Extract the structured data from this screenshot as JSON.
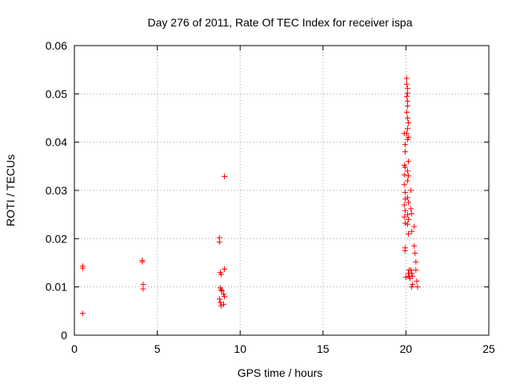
{
  "chart_data": {
    "type": "scatter",
    "title": "Day 276 of 2011, Rate Of TEC Index for receiver ispa",
    "xlabel": "GPS time / hours",
    "ylabel": "ROTI / TECUs",
    "xlim": [
      0,
      25
    ],
    "ylim": [
      0,
      0.06
    ],
    "xticks": [
      0,
      5,
      10,
      15,
      20,
      25
    ],
    "xtick_labels": [
      "0",
      "5",
      "10",
      "15",
      "20",
      "25"
    ],
    "yticks": [
      0,
      0.01,
      0.02,
      0.03,
      0.04,
      0.05,
      0.06
    ],
    "ytick_labels": [
      "0",
      "0.01",
      "0.02",
      "0.03",
      "0.04",
      "0.05",
      "0.06"
    ],
    "grid": true,
    "marker": "+",
    "series": [
      {
        "name": "ROTI",
        "color": "#ff0000",
        "points": [
          [
            0.5,
            0.0143
          ],
          [
            0.5,
            0.0139
          ],
          [
            0.5,
            0.0045
          ],
          [
            4.1,
            0.0155
          ],
          [
            4.1,
            0.0152
          ],
          [
            4.15,
            0.0105
          ],
          [
            4.15,
            0.0096
          ],
          [
            8.75,
            0.0202
          ],
          [
            8.75,
            0.0193
          ],
          [
            8.8,
            0.013
          ],
          [
            8.85,
            0.0126
          ],
          [
            8.8,
            0.0098
          ],
          [
            8.85,
            0.0094
          ],
          [
            8.9,
            0.0092
          ],
          [
            8.75,
            0.0075
          ],
          [
            8.8,
            0.0068
          ],
          [
            8.85,
            0.0061
          ],
          [
            9.0,
            0.0085
          ],
          [
            9.05,
            0.008
          ],
          [
            9.0,
            0.0064
          ],
          [
            9.05,
            0.0137
          ],
          [
            9.05,
            0.0329
          ],
          [
            19.9,
            0.0418
          ],
          [
            19.95,
            0.0395
          ],
          [
            19.95,
            0.038
          ],
          [
            19.9,
            0.0352
          ],
          [
            19.95,
            0.0348
          ],
          [
            19.9,
            0.0332
          ],
          [
            19.9,
            0.0312
          ],
          [
            19.95,
            0.0296
          ],
          [
            19.95,
            0.0282
          ],
          [
            19.9,
            0.027
          ],
          [
            19.95,
            0.0258
          ],
          [
            19.9,
            0.0245
          ],
          [
            19.95,
            0.0232
          ],
          [
            19.95,
            0.0181
          ],
          [
            19.95,
            0.0175
          ],
          [
            20.0,
            0.012
          ],
          [
            20.05,
            0.0532
          ],
          [
            20.05,
            0.052
          ],
          [
            20.1,
            0.0511
          ],
          [
            20.1,
            0.0502
          ],
          [
            20.05,
            0.0495
          ],
          [
            20.1,
            0.0485
          ],
          [
            20.1,
            0.0475
          ],
          [
            20.05,
            0.0462
          ],
          [
            20.1,
            0.045
          ],
          [
            20.15,
            0.044
          ],
          [
            20.1,
            0.0428
          ],
          [
            20.05,
            0.0418
          ],
          [
            20.15,
            0.041
          ],
          [
            20.1,
            0.0405
          ],
          [
            20.15,
            0.036
          ],
          [
            20.1,
            0.034
          ],
          [
            20.15,
            0.033
          ],
          [
            20.1,
            0.032
          ],
          [
            20.1,
            0.0285
          ],
          [
            20.15,
            0.0275
          ],
          [
            20.1,
            0.025
          ],
          [
            20.15,
            0.024
          ],
          [
            20.1,
            0.023
          ],
          [
            20.15,
            0.021
          ],
          [
            20.2,
            0.0135
          ],
          [
            20.15,
            0.0128
          ],
          [
            20.2,
            0.0122
          ],
          [
            20.25,
            0.0118
          ],
          [
            20.3,
            0.03
          ],
          [
            20.3,
            0.0262
          ],
          [
            20.35,
            0.0252
          ],
          [
            20.35,
            0.0215
          ],
          [
            20.3,
            0.0135
          ],
          [
            20.35,
            0.0128
          ],
          [
            20.4,
            0.0122
          ],
          [
            20.4,
            0.0105
          ],
          [
            20.35,
            0.01
          ],
          [
            20.5,
            0.0225
          ],
          [
            20.5,
            0.0185
          ],
          [
            20.55,
            0.017
          ],
          [
            20.6,
            0.0152
          ],
          [
            20.6,
            0.0135
          ],
          [
            20.65,
            0.0112
          ],
          [
            20.7,
            0.01
          ]
        ]
      }
    ]
  }
}
